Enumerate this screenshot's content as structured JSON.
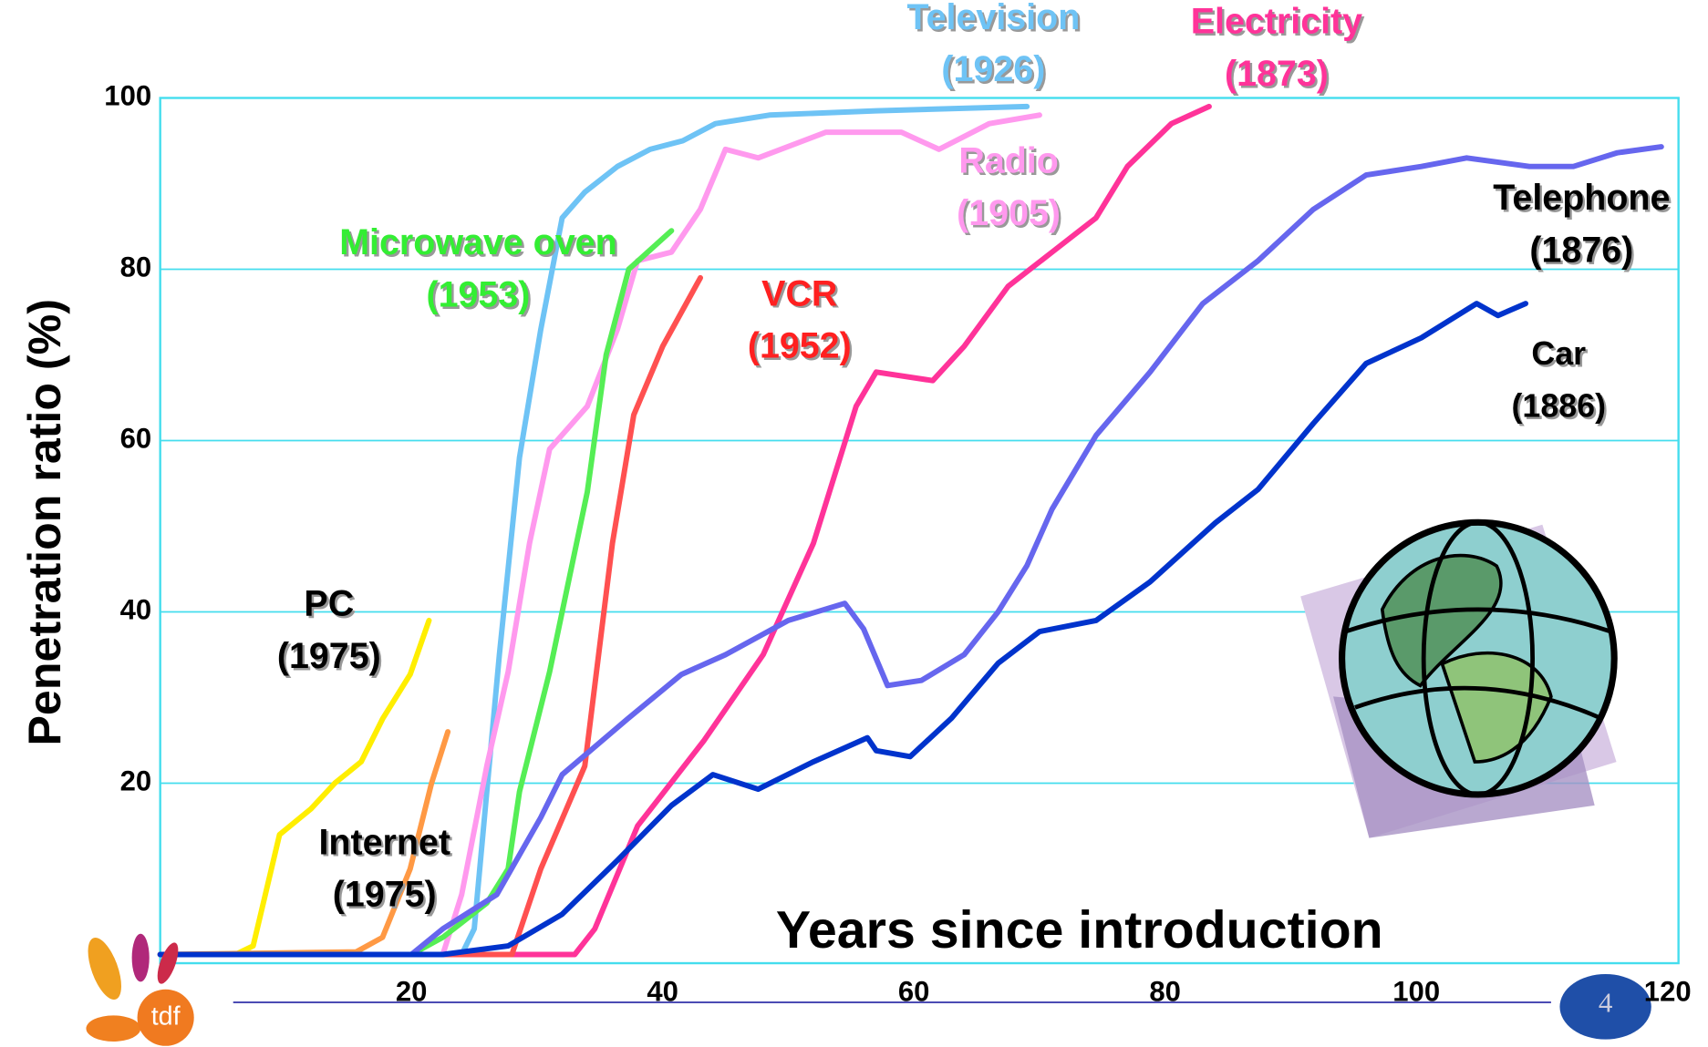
{
  "chart_data": {
    "type": "line",
    "x_label": "Years since introduction",
    "y_label": "Penetration ratio (%)",
    "xlim": [
      0,
      120
    ],
    "ylim": [
      0,
      100
    ],
    "xticks": [
      20,
      40,
      60,
      80,
      100,
      120
    ],
    "yticks": [
      20,
      40,
      60,
      80,
      100
    ],
    "grid": true,
    "series": [
      {
        "name": "Television",
        "year_label": "(1926)",
        "color": "#6ec3f5",
        "label_color": "#6ec3f5",
        "x": [
          0,
          20,
          24,
          25,
          27,
          28.6,
          30.3,
          32,
          33.8,
          36.4,
          39,
          41.6,
          44.2,
          48.5,
          57,
          69
        ],
        "values": [
          0,
          0,
          0,
          3,
          35,
          58,
          73,
          86,
          89,
          92,
          94,
          95,
          97,
          98,
          98.5,
          99
        ]
      },
      {
        "name": "Electricity",
        "year_label": "(1873)",
        "color": "#ff3399",
        "label_color": "#ff3399",
        "x": [
          0,
          20,
          33,
          34.6,
          38,
          43.3,
          48,
          52,
          55.4,
          57,
          61.5,
          64,
          67.5,
          71,
          74.5,
          77,
          80.5,
          83.5
        ],
        "values": [
          0,
          0,
          0,
          3,
          15,
          25,
          35,
          48,
          64,
          68,
          67,
          71,
          78,
          82,
          86,
          92,
          97,
          99
        ]
      },
      {
        "name": "Radio",
        "year_label": "(1905)",
        "color": "#ff99ee",
        "label_color": "#ff99ee",
        "x": [
          0,
          20,
          22.5,
          24,
          26,
          27.7,
          29.4,
          31,
          34,
          36.4,
          38,
          40.7,
          43,
          45,
          47.6,
          53,
          59,
          62,
          66,
          70
        ],
        "values": [
          0,
          0,
          0,
          7,
          22,
          33,
          48,
          59,
          64,
          73,
          81,
          82,
          87,
          94,
          93,
          96,
          96,
          94,
          97,
          98
        ]
      },
      {
        "name": "Microwave oven",
        "year_label": "(1953)",
        "color": "#55ee55",
        "label_color": "#33ee33",
        "x": [
          0,
          20,
          22.5,
          26,
          27.7,
          28.6,
          31,
          34,
          35.5,
          37.3,
          40.7
        ],
        "values": [
          0,
          0,
          2,
          6,
          10,
          19,
          33,
          54,
          70,
          80,
          84.5
        ]
      },
      {
        "name": "VCR",
        "year_label": "(1952)",
        "color": "#ff5050",
        "label_color": "#ff2020",
        "x": [
          0,
          20,
          28,
          30.3,
          33.8,
          36,
          37.7,
          40,
          43
        ],
        "values": [
          0,
          0,
          0,
          10,
          22,
          48,
          63,
          71,
          79
        ]
      },
      {
        "name": "PC",
        "year_label": "(1975)",
        "color": "#ffee00",
        "label_color": "#000000",
        "x": [
          0,
          6,
          7.4,
          9.5,
          12,
          13.9,
          16,
          17.7,
          19.9,
          21.4
        ],
        "values": [
          0,
          0,
          1,
          14,
          17,
          20,
          22.5,
          27.5,
          32.7,
          39
        ]
      },
      {
        "name": "Internet",
        "year_label": "(1975)",
        "color": "#ff9944",
        "label_color": "#000000",
        "x": [
          0,
          15.6,
          17.7,
          19.9,
          21.6,
          22.9
        ],
        "values": [
          0,
          0.3,
          2,
          10,
          20,
          26
        ]
      },
      {
        "name": "Telephone",
        "year_label": "(1876)",
        "color": "#6666ee",
        "label_color": "#000000",
        "x": [
          0,
          20,
          22.5,
          26.8,
          30.3,
          32,
          37.2,
          41.5,
          45,
          50,
          54.5,
          56,
          57.9,
          60.6,
          64,
          66.7,
          69,
          71,
          74.5,
          78.8,
          83,
          87.4,
          91.8,
          96,
          100.4,
          104,
          109,
          112.5,
          116,
          119.5
        ],
        "values": [
          0,
          0,
          3,
          7,
          16,
          21,
          27.5,
          32.7,
          35,
          39,
          41,
          38,
          31.4,
          32,
          35,
          40,
          45.4,
          52,
          60.6,
          68,
          76,
          81,
          87,
          91,
          92,
          93,
          92,
          92,
          93.6,
          94.3
        ]
      },
      {
        "name": "Car",
        "year_label": "(1886)",
        "color": "#0033cc",
        "label_color": "#000000",
        "x": [
          0,
          22.5,
          27.7,
          32,
          36.4,
          40.7,
          44,
          47.6,
          52,
          56.3,
          57,
          59.7,
          63,
          66.7,
          70,
          74.5,
          78.8,
          84,
          87.4,
          91.8,
          96,
          100.4,
          104.8,
          106.5,
          108.7
        ],
        "values": [
          0,
          0,
          1,
          4.7,
          11,
          17.4,
          21,
          19.3,
          22.5,
          25.3,
          23.8,
          23.1,
          27.6,
          34,
          37.7,
          39,
          43.5,
          50.4,
          54.3,
          62,
          69,
          72,
          76,
          74.6,
          76
        ]
      }
    ]
  },
  "logo_text": "tdf",
  "page_number": "4"
}
